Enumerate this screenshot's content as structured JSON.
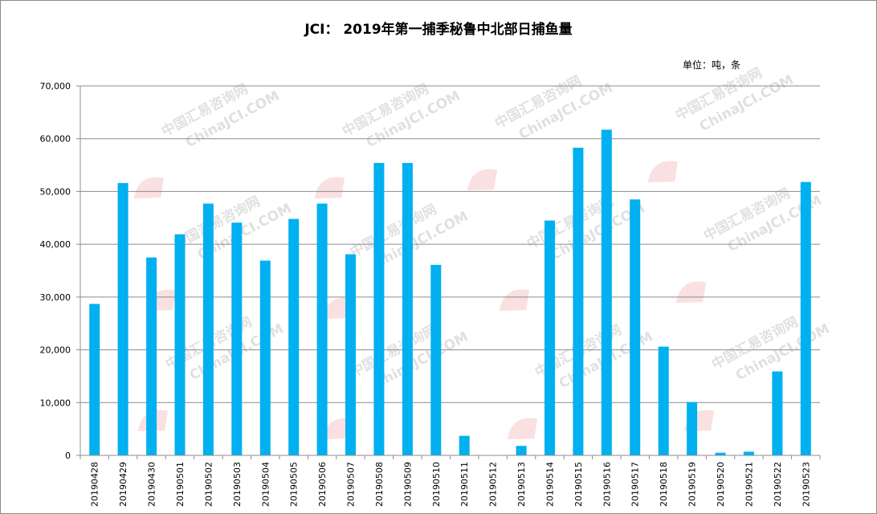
{
  "chart_data": {
    "type": "bar",
    "title": "JCI： 2019年第一捕季秘鲁中北部日捕鱼量",
    "unit_label": "单位：吨，条",
    "ylim": [
      0,
      70000
    ],
    "y_ticks": [
      0,
      10000,
      20000,
      30000,
      40000,
      50000,
      60000,
      70000
    ],
    "y_tick_labels": [
      "0",
      "10,000",
      "20,000",
      "30,000",
      "40,000",
      "50,000",
      "60,000",
      "70,000"
    ],
    "grid": true,
    "bar_color": "#00b0f0",
    "categories": [
      "20190428",
      "20190429",
      "20190430",
      "20190501",
      "20190502",
      "20190503",
      "20190504",
      "20190505",
      "20190506",
      "20190507",
      "20190508",
      "20190509",
      "20190510",
      "20190511",
      "20190512",
      "20190513",
      "20190514",
      "20190515",
      "20190516",
      "20190517",
      "20190518",
      "20190519",
      "20190520",
      "20190521",
      "20190522",
      "20190523"
    ],
    "values": [
      28700,
      51600,
      37500,
      41900,
      47700,
      44100,
      36900,
      44800,
      47700,
      38100,
      55400,
      55400,
      36100,
      3700,
      0,
      1800,
      44500,
      58300,
      61700,
      48500,
      20600,
      10100,
      500,
      700,
      15900,
      51800
    ]
  },
  "watermark": {
    "cn": "中国汇易咨询网",
    "en": "ChinaJCI.COM"
  }
}
